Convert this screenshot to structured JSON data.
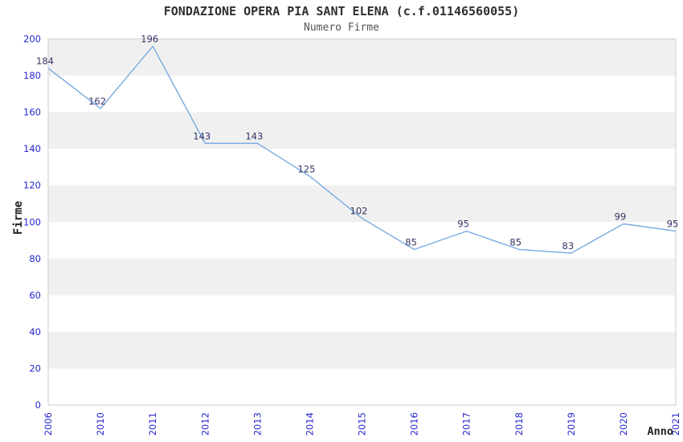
{
  "header": {
    "title": "FONDAZIONE OPERA PIA SANT ELENA (c.f.01146560055)",
    "subtitle": "Numero Firme"
  },
  "axes": {
    "x_label": "Anno",
    "y_label": "Firme"
  },
  "chart_data": {
    "type": "line",
    "title": "FONDAZIONE OPERA PIA SANT ELENA (c.f.01146560055)",
    "subtitle": "Numero Firme",
    "xlabel": "Anno",
    "ylabel": "Firme",
    "categories": [
      "2006",
      "2010",
      "2011",
      "2012",
      "2013",
      "2014",
      "2015",
      "2016",
      "2017",
      "2018",
      "2019",
      "2020",
      "2021"
    ],
    "values": [
      184,
      162,
      196,
      143,
      143,
      125,
      102,
      85,
      95,
      85,
      83,
      99,
      95
    ],
    "ylim": [
      0,
      200
    ],
    "ytick_step": 20,
    "yticks": [
      0,
      20,
      40,
      60,
      80,
      100,
      120,
      140,
      160,
      180,
      200
    ],
    "grid": "alternating-horizontal-bands",
    "legend": "none",
    "point_labels_shown": true,
    "x_tick_rotation": -90
  },
  "colors": {
    "line": "#78abe2",
    "tick_label": "#2626cf",
    "data_label": "#333366",
    "band_fill": "#f0f0f0",
    "plot_border": "#d4d4d4",
    "title": "#303030",
    "subtitle": "#555555",
    "axis_title": "#222222"
  }
}
